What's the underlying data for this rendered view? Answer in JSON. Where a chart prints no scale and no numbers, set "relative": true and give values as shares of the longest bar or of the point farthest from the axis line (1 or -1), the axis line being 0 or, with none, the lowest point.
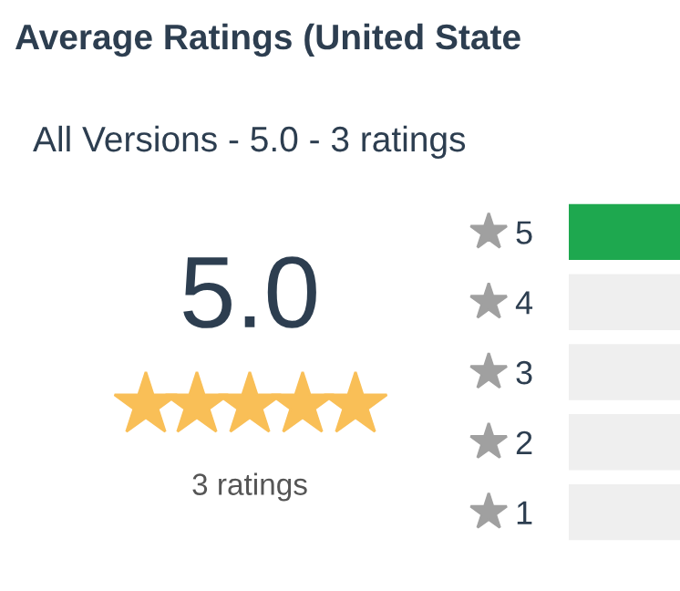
{
  "chart_data": {
    "type": "bar",
    "orientation": "horizontal",
    "relative": true,
    "title": "Average Ratings (United State",
    "subtitle": "All Versions - 5.0 - 3 ratings",
    "categories": [
      "5",
      "4",
      "3",
      "2",
      "1"
    ],
    "stacked": true,
    "series": [
      {
        "color": "#1ea84f",
        "values": [
          1,
          0,
          0,
          0,
          0
        ]
      },
      {
        "color": "#efefef",
        "values": [
          0,
          1,
          1,
          1,
          1
        ]
      }
    ],
    "annotations": [
      "5.0",
      "3 ratings"
    ],
    "grid": false,
    "legend": false
  }
}
